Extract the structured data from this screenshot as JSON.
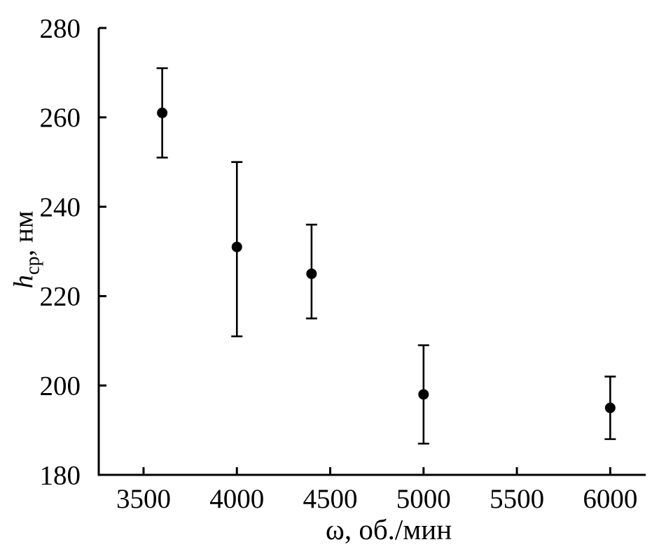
{
  "figure": {
    "background_color": "#ffffff",
    "axis_color": "#000000"
  },
  "chart_data": {
    "type": "scatter",
    "title": "",
    "xlabel": "ω, об./мин",
    "ylabel": "h_ср, нм",
    "ylabel_parts": {
      "variable": "h",
      "subscript": "ср",
      "rest": ", нм"
    },
    "x": [
      3600,
      4000,
      4400,
      5000,
      6000
    ],
    "y": [
      261,
      231,
      225,
      198,
      195
    ],
    "y_err_low": [
      251,
      211,
      215,
      187,
      188
    ],
    "y_err_high": [
      271,
      250,
      236,
      209,
      202
    ],
    "xticks": [
      3500,
      4000,
      4500,
      5000,
      5500,
      6000
    ],
    "yticks": [
      180,
      200,
      220,
      240,
      260,
      280
    ],
    "xlim": [
      3260,
      6190
    ],
    "ylim": [
      180,
      280
    ],
    "grid": false,
    "legend": null,
    "marker": {
      "shape": "circle",
      "color": "#000000"
    },
    "error_bars": {
      "direction": "vertical",
      "color": "#000000"
    }
  }
}
